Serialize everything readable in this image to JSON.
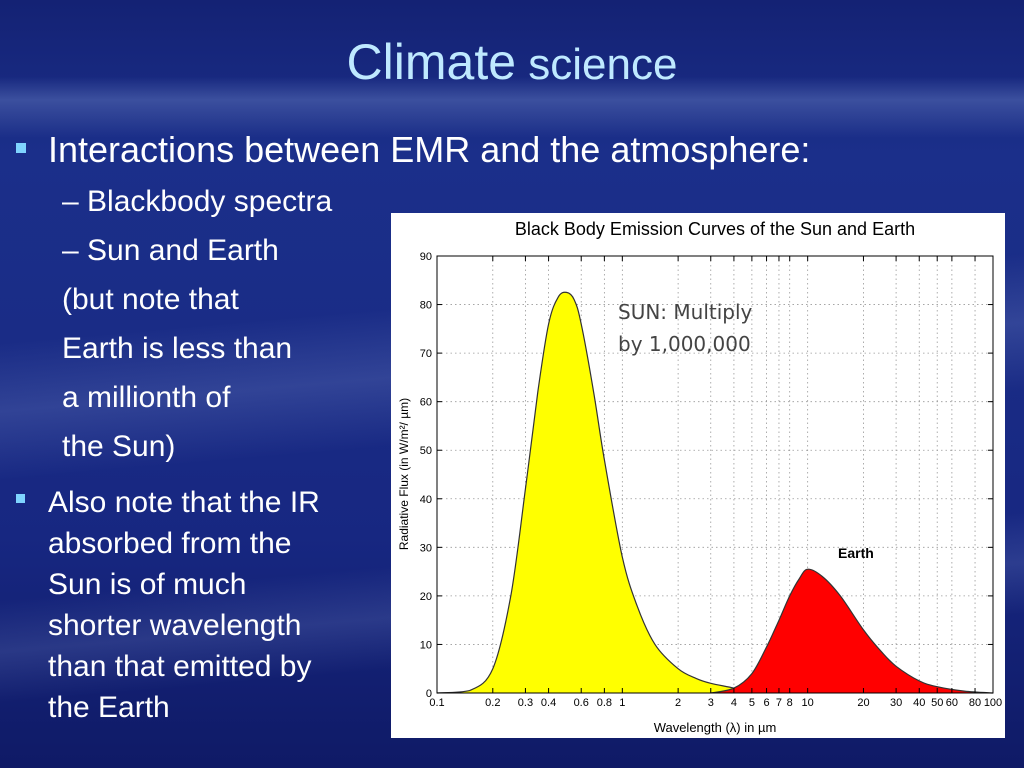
{
  "slide": {
    "title_main": "Climate",
    "title_rest": " science",
    "bullet1": "Interactions between EMR and the atmosphere:",
    "sub1": "– Blackbody spectra",
    "sub2": "– Sun and Earth",
    "note_lines": [
      "(but note that",
      "Earth is less than",
      "a millionth of",
      "the Sun)"
    ],
    "bullet2_lines": [
      "Also note that the IR",
      "absorbed from the",
      "Sun is of much",
      "shorter wavelength",
      "than that emitted by",
      "the Earth"
    ],
    "colors": {
      "title": "#bfe9ff",
      "bullet_marker": "#7fd4ff",
      "text": "#ffffff",
      "background": "#1a2c86"
    }
  },
  "chart_data": {
    "type": "area",
    "title": "Black Body Emission Curves of the Sun and Earth",
    "xlabel": "Wavelength (λ) in µm",
    "ylabel": "Radiative Flux (in W/m²/ µm)",
    "x_scale": "log",
    "xlim": [
      0.1,
      100
    ],
    "ylim": [
      0,
      90
    ],
    "grid": "dotted",
    "x_ticks": [
      0.1,
      0.2,
      0.3,
      0.4,
      0.6,
      0.8,
      1,
      2,
      3,
      4,
      5,
      6,
      7,
      8,
      10,
      20,
      30,
      40,
      50,
      60,
      80,
      100
    ],
    "x_tick_labels": [
      "0.1",
      "0.2",
      "0.3",
      "0.4",
      "0.6",
      "0.8",
      "1",
      "2",
      "3",
      "4",
      "5",
      "6",
      "7",
      "8",
      "10",
      "20",
      "30",
      "40",
      "50",
      "60",
      "80",
      "100"
    ],
    "y_ticks": [
      0,
      10,
      20,
      30,
      40,
      50,
      60,
      70,
      80,
      90
    ],
    "annotations": [
      {
        "label": "SUN: Multiply",
        "label2": "by 1,000,000",
        "bold_prefix": "SUN"
      },
      {
        "label": "Earth"
      }
    ],
    "series": [
      {
        "color": "#ffff00",
        "x": [
          0.1,
          0.15,
          0.2,
          0.25,
          0.3,
          0.35,
          0.4,
          0.45,
          0.5,
          0.55,
          0.6,
          0.7,
          0.8,
          1,
          1.2,
          1.5,
          2,
          2.5,
          3,
          4,
          5
        ],
        "y": [
          0,
          0.5,
          5,
          20,
          42,
          62,
          76,
          81.5,
          82.5,
          81,
          76,
          62,
          48,
          28,
          18,
          10,
          5,
          3,
          2,
          1,
          0
        ]
      },
      {
        "color": "#ff0000",
        "x": [
          3,
          4,
          5,
          6,
          7,
          8,
          9,
          10,
          12,
          15,
          20,
          25,
          30,
          40,
          50,
          70,
          100
        ],
        "y": [
          0,
          1,
          4,
          9.5,
          15,
          20,
          23.5,
          25.5,
          24,
          20,
          13,
          8.5,
          5.5,
          2.5,
          1.3,
          0.4,
          0
        ]
      }
    ]
  }
}
